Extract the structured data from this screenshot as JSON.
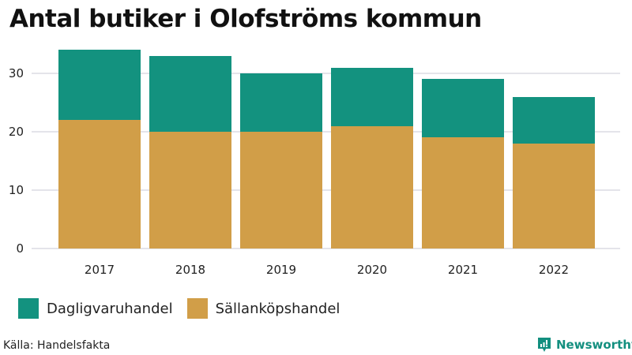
{
  "title": "Antal butiker i Olofströms kommun",
  "colors": {
    "dagligvaruhandel": "#13927f",
    "sallankopshandel": "#d19e48",
    "gridline": "#e4e4ea",
    "brand": "#138f7f"
  },
  "y_axis": {
    "ticks": [
      "0",
      "10",
      "20",
      "30"
    ]
  },
  "x_axis": {
    "ticks": [
      "2017",
      "2018",
      "2019",
      "2020",
      "2021",
      "2022"
    ]
  },
  "legend": {
    "items": [
      {
        "label": "Dagligvaruhandel",
        "color": "#13927f"
      },
      {
        "label": "Sällanköpshandel",
        "color": "#d19e48"
      }
    ]
  },
  "footer": {
    "source": "Källa: Handelsfakta",
    "brand": "Newsworthy"
  },
  "chart_data": {
    "type": "bar",
    "stacked": true,
    "title": "Antal butiker i Olofströms kommun",
    "xlabel": "",
    "ylabel": "",
    "categories": [
      "2017",
      "2018",
      "2019",
      "2020",
      "2021",
      "2022"
    ],
    "series": [
      {
        "name": "Sällanköpshandel",
        "color": "#d19e48",
        "values": [
          22,
          20,
          20,
          21,
          19,
          18
        ]
      },
      {
        "name": "Dagligvaruhandel",
        "color": "#13927f",
        "values": [
          12,
          13,
          10,
          10,
          10,
          8
        ]
      }
    ],
    "totals": [
      34,
      33,
      30,
      31,
      29,
      26
    ],
    "ylim": [
      0,
      35
    ],
    "yticks": [
      0,
      10,
      20,
      30
    ],
    "grid": true,
    "legend_position": "bottom",
    "source": "Källa: Handelsfakta"
  }
}
